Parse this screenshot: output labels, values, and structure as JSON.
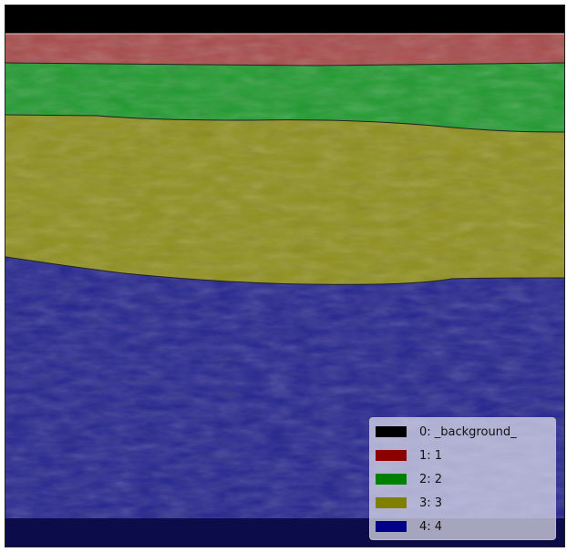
{
  "image": {
    "type": "ultrasound segmentation overlay",
    "layers": [
      {
        "class": "_background",
        "color": "#000000"
      },
      {
        "class": "1",
        "color": "#a84a4a"
      },
      {
        "class": "2",
        "color": "#1f9a2e"
      },
      {
        "class": "3",
        "color": "#8f8f1c"
      },
      {
        "class": "4",
        "color": "#24248f"
      }
    ]
  },
  "legend": {
    "items": [
      {
        "label": "0: _background_",
        "color": "#000000"
      },
      {
        "label": "1: 1",
        "color": "#8b0000"
      },
      {
        "label": "2: 2",
        "color": "#008000"
      },
      {
        "label": "3: 3",
        "color": "#808000"
      },
      {
        "label": "4: 4",
        "color": "#00008b"
      }
    ]
  }
}
